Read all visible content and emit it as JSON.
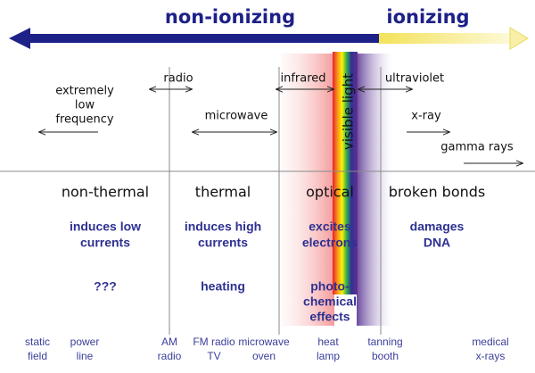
{
  "header": {
    "left": "non-ionizing",
    "right": "ionizing"
  },
  "bands": [
    [
      "extremely",
      "low",
      "frequency"
    ],
    [
      "radio"
    ],
    [
      "microwave"
    ],
    [
      "infrared"
    ],
    [
      "visible light"
    ],
    [
      "ultraviolet"
    ],
    [
      "x-ray"
    ],
    [
      "gamma rays"
    ]
  ],
  "effects": [
    {
      "heading": "non-thermal",
      "mechanism": [
        "induces low",
        "currents"
      ],
      "result": [
        "???"
      ]
    },
    {
      "heading": "thermal",
      "mechanism": [
        "induces high",
        "currents"
      ],
      "result": [
        "heating"
      ]
    },
    {
      "heading": "optical",
      "mechanism": [
        "excites",
        "electrons"
      ],
      "result": [
        "photo-",
        "chemical",
        "effects"
      ]
    },
    {
      "heading": "broken bonds",
      "mechanism": [
        "damages",
        "DNA"
      ],
      "result": []
    }
  ],
  "sources": [
    [
      "static",
      "field"
    ],
    [
      "power",
      "line"
    ],
    [
      "AM",
      "radio"
    ],
    [
      "FM radio",
      "TV"
    ],
    [
      "microwave",
      "oven"
    ],
    [
      "heat",
      "lamp"
    ],
    [
      "tanning",
      "booth"
    ],
    [
      "medical",
      "x-rays"
    ]
  ]
}
